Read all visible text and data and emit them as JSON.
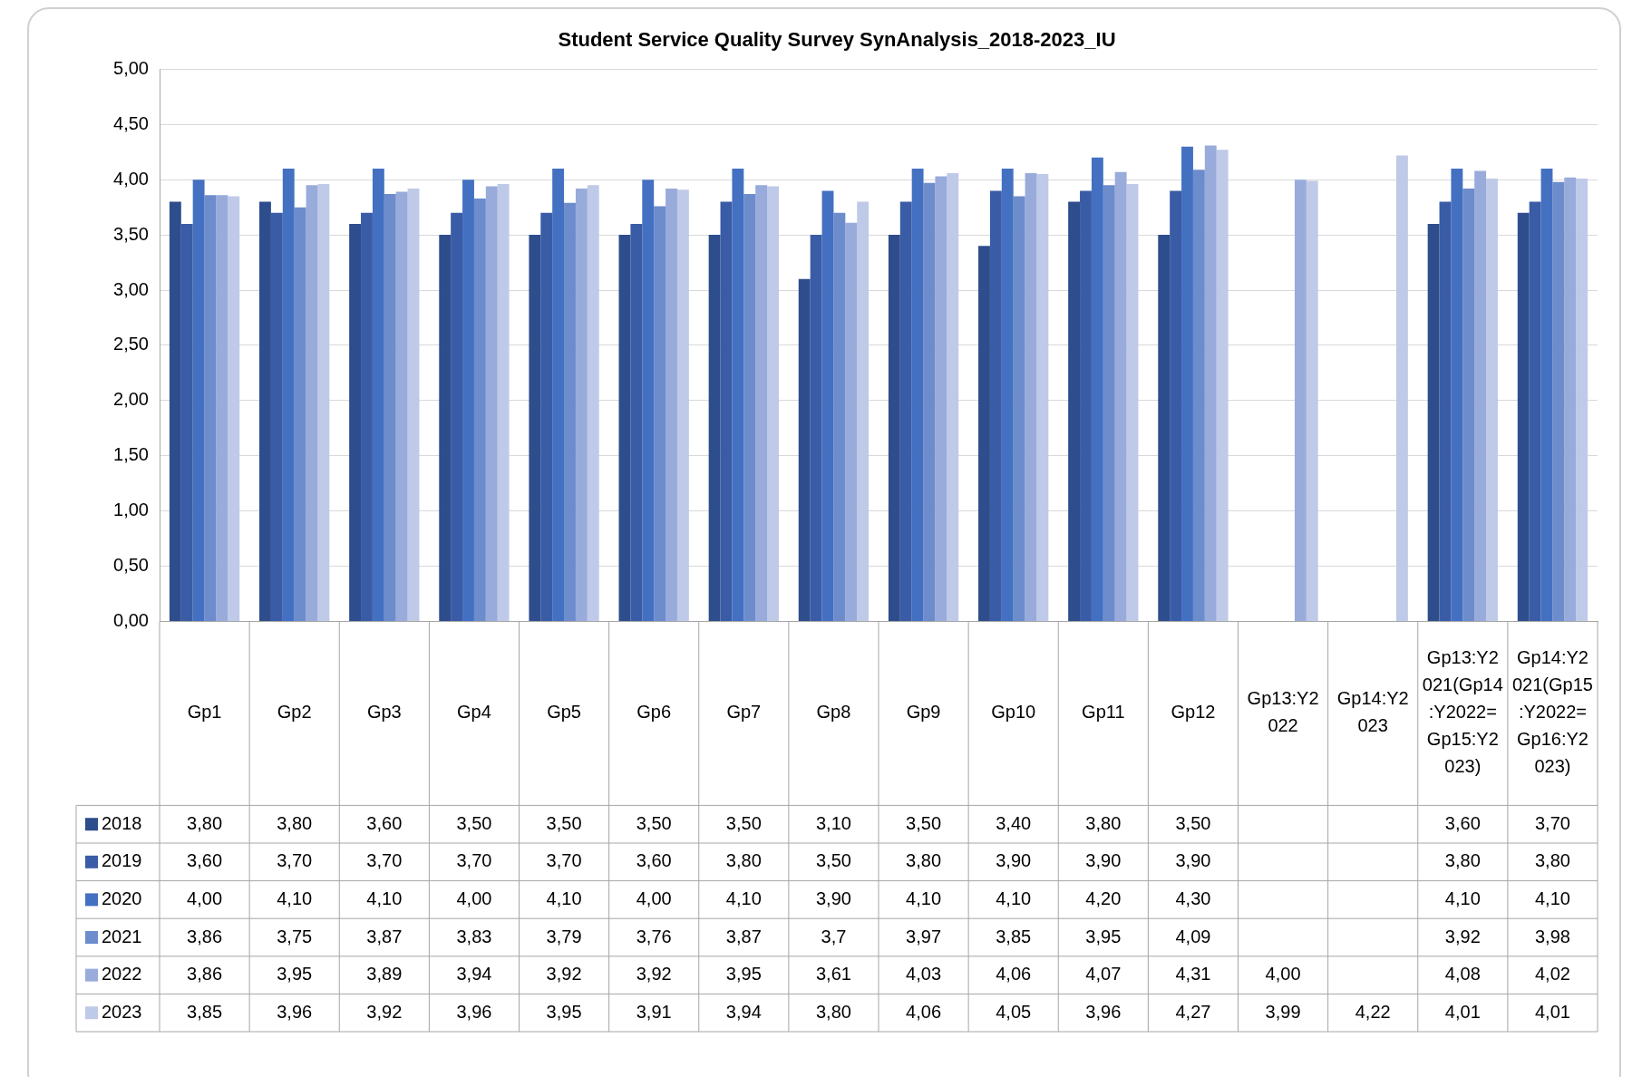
{
  "chart_data": {
    "type": "bar",
    "title": "Student Service Quality Survey SynAnalysis_2018-2023_IU",
    "categories": [
      "Gp1",
      "Gp2",
      "Gp3",
      "Gp4",
      "Gp5",
      "Gp6",
      "Gp7",
      "Gp8",
      "Gp9",
      "Gp10",
      "Gp11",
      "Gp12",
      "Gp13:Y2022",
      "Gp14:Y2023",
      "Gp13:Y2021(Gp14:Y2022=Gp15:Y2023)",
      "Gp14:Y2021(Gp15:Y2022=Gp16:Y2023)"
    ],
    "series": [
      {
        "name": "2018",
        "color": "#2e4d8c",
        "values": [
          3.8,
          3.8,
          3.6,
          3.5,
          3.5,
          3.5,
          3.5,
          3.1,
          3.5,
          3.4,
          3.8,
          3.5,
          null,
          null,
          3.6,
          3.7
        ],
        "value_labels": [
          "3,80",
          "3,80",
          "3,60",
          "3,50",
          "3,50",
          "3,50",
          "3,50",
          "3,10",
          "3,50",
          "3,40",
          "3,80",
          "3,50",
          null,
          null,
          "3,60",
          "3,70"
        ]
      },
      {
        "name": "2019",
        "color": "#3a5ca6",
        "values": [
          3.6,
          3.7,
          3.7,
          3.7,
          3.7,
          3.6,
          3.8,
          3.5,
          3.8,
          3.9,
          3.9,
          3.9,
          null,
          null,
          3.8,
          3.8
        ],
        "value_labels": [
          "3,60",
          "3,70",
          "3,70",
          "3,70",
          "3,70",
          "3,60",
          "3,80",
          "3,50",
          "3,80",
          "3,90",
          "3,90",
          "3,90",
          null,
          null,
          "3,80",
          "3,80"
        ]
      },
      {
        "name": "2020",
        "color": "#4470c2",
        "values": [
          4.0,
          4.1,
          4.1,
          4.0,
          4.1,
          4.0,
          4.1,
          3.9,
          4.1,
          4.1,
          4.2,
          4.3,
          null,
          null,
          4.1,
          4.1
        ],
        "value_labels": [
          "4,00",
          "4,10",
          "4,10",
          "4,00",
          "4,10",
          "4,00",
          "4,10",
          "3,90",
          "4,10",
          "4,10",
          "4,20",
          "4,30",
          null,
          null,
          "4,10",
          "4,10"
        ]
      },
      {
        "name": "2021",
        "color": "#6d8ccc",
        "values": [
          3.86,
          3.75,
          3.87,
          3.83,
          3.79,
          3.76,
          3.87,
          3.7,
          3.97,
          3.85,
          3.95,
          4.09,
          null,
          null,
          3.92,
          3.98
        ],
        "value_labels": [
          "3,86",
          "3,75",
          "3,87",
          "3,83",
          "3,79",
          "3,76",
          "3,87",
          "3,7",
          "3,97",
          "3,85",
          "3,95",
          "4,09",
          null,
          null,
          "3,92",
          "3,98"
        ]
      },
      {
        "name": "2022",
        "color": "#98abdb",
        "values": [
          3.86,
          3.95,
          3.89,
          3.94,
          3.92,
          3.92,
          3.95,
          3.61,
          4.03,
          4.06,
          4.07,
          4.31,
          4.0,
          null,
          4.08,
          4.02
        ],
        "value_labels": [
          "3,86",
          "3,95",
          "3,89",
          "3,94",
          "3,92",
          "3,92",
          "3,95",
          "3,61",
          "4,03",
          "4,06",
          "4,07",
          "4,31",
          "4,00",
          null,
          "4,08",
          "4,02"
        ]
      },
      {
        "name": "2023",
        "color": "#bfcae8",
        "values": [
          3.85,
          3.96,
          3.92,
          3.96,
          3.95,
          3.91,
          3.94,
          3.8,
          4.06,
          4.05,
          3.96,
          4.27,
          3.99,
          4.22,
          4.01,
          4.01
        ],
        "value_labels": [
          "3,85",
          "3,96",
          "3,92",
          "3,96",
          "3,95",
          "3,91",
          "3,94",
          "3,80",
          "4,06",
          "4,05",
          "3,96",
          "4,27",
          "3,99",
          "4,22",
          "4,01",
          "4,01"
        ]
      }
    ],
    "ylim": [
      0,
      5
    ],
    "yticks": [
      {
        "value": 0,
        "label": "0,00"
      },
      {
        "value": 0.5,
        "label": "0,50"
      },
      {
        "value": 1,
        "label": "1,00"
      },
      {
        "value": 1.5,
        "label": "1,50"
      },
      {
        "value": 2,
        "label": "2,00"
      },
      {
        "value": 2.5,
        "label": "2,50"
      },
      {
        "value": 3,
        "label": "3,00"
      },
      {
        "value": 3.5,
        "label": "3,50"
      },
      {
        "value": 4,
        "label": "4,00"
      },
      {
        "value": 4.5,
        "label": "4,50"
      },
      {
        "value": 5,
        "label": "5,00"
      }
    ],
    "grid": "y",
    "legend": "bottom"
  }
}
